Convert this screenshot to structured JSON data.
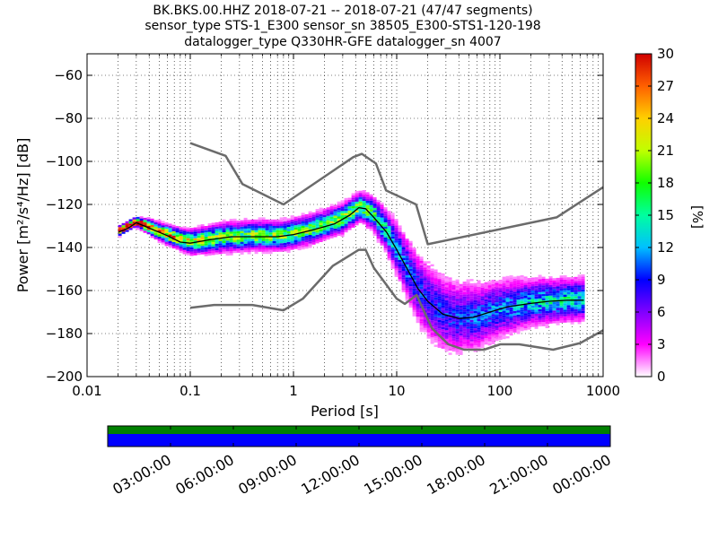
{
  "colors": {
    "noise_model": "#6b6b6b",
    "mode": "#000000",
    "availability_data": "#0000ff",
    "availability_gaps": "#ff0000",
    "availability_top": "#008000"
  },
  "chart_data": [
    {
      "type": "heatmap",
      "title_lines": [
        "BK.BKS.00.HHZ   2018-07-21 -- 2018-07-21  (47/47 segments)",
        "sensor_type STS-1_E300 sensor_sn 38505_E300-STS1-120-198",
        "datalogger_type Q330HR-GFE datalogger_sn 4007"
      ],
      "xlabel": "Period [s]",
      "ylabel": "Power [m²/s⁴/Hz] [dB]",
      "x_scale": "log",
      "xlim": [
        0.01,
        1000
      ],
      "ylim": [
        -200,
        -50
      ],
      "x_ticks": [
        0.01,
        0.1,
        1,
        10,
        100,
        1000
      ],
      "x_tick_labels": [
        "0.01",
        "0.1",
        "1",
        "10",
        "100",
        "1000"
      ],
      "y_ticks": [
        -200,
        -180,
        -160,
        -140,
        -120,
        -100,
        -80,
        -60
      ],
      "y_tick_labels": [
        "−200",
        "−180",
        "−160",
        "−140",
        "−120",
        "−100",
        "−80",
        "−60"
      ],
      "grid": true,
      "colorbar": {
        "label": "[%]",
        "range": [
          0,
          30
        ],
        "ticks": [
          0,
          3,
          6,
          9,
          12,
          15,
          18,
          21,
          24,
          27,
          30
        ],
        "tick_labels": [
          "0",
          "3",
          "6",
          "9",
          "12",
          "15",
          "18",
          "21",
          "24",
          "27",
          "30"
        ]
      },
      "series": [
        {
          "role": "high_noise_model",
          "x": [
            0.1,
            0.22,
            0.32,
            0.8,
            3.8,
            4.6,
            6.3,
            7.9,
            15.4,
            20,
            354.8,
            1000
          ],
          "y": [
            -91.5,
            -97.4,
            -110.5,
            -120,
            -98,
            -96.5,
            -101,
            -113.5,
            -120,
            -138.5,
            -126,
            -112
          ]
        },
        {
          "role": "low_noise_model",
          "x": [
            0.1,
            0.17,
            0.4,
            0.8,
            1.24,
            2.4,
            4.3,
            5,
            6,
            10,
            12,
            15.6,
            21.9,
            31.6,
            45,
            70,
            101,
            154,
            328,
            600,
            1000
          ],
          "y": [
            -168,
            -166.7,
            -166.7,
            -169.2,
            -163.7,
            -148.6,
            -141.1,
            -141.1,
            -149.4,
            -163.8,
            -166.2,
            -162.1,
            -177.5,
            -185,
            -187.5,
            -187.5,
            -185,
            -185,
            -187.5,
            -184.4,
            -178.5
          ]
        },
        {
          "role": "mode",
          "x": [
            0.02,
            0.025,
            0.03,
            0.04,
            0.06,
            0.08,
            0.1,
            0.15,
            0.25,
            0.4,
            0.7,
            1,
            1.5,
            2.5,
            3.5,
            4.3,
            5,
            6,
            8,
            10,
            13,
            16,
            20,
            28,
            40,
            55,
            80,
            120,
            200,
            300,
            450,
            650
          ],
          "y": [
            -133,
            -131,
            -128.5,
            -131,
            -134.5,
            -137.5,
            -138,
            -136.5,
            -135,
            -135,
            -135,
            -134,
            -132,
            -129,
            -125,
            -121.5,
            -122,
            -126,
            -133,
            -141,
            -151,
            -159,
            -165,
            -171,
            -173,
            -172.5,
            -170,
            -167.5,
            -166,
            -165,
            -164.5,
            -164.5
          ]
        }
      ],
      "psd_density": {
        "description": "probability density of PSD values (percent of segments per bin)",
        "x": [
          0.02,
          0.03,
          0.04,
          0.06,
          0.1,
          0.2,
          0.4,
          0.8,
          1.5,
          3,
          4.5,
          6,
          8,
          10,
          13,
          16,
          20,
          28,
          40,
          60,
          100,
          200,
          400,
          650
        ],
        "center_db": [
          -133,
          -128.5,
          -131,
          -134.5,
          -138,
          -136,
          -135,
          -135,
          -132,
          -127,
          -121.5,
          -125,
          -133,
          -141,
          -151,
          -159,
          -165,
          -171,
          -173,
          -172.5,
          -169,
          -166,
          -165,
          -164.5
        ],
        "spread_db": [
          2,
          2,
          3,
          4,
          5,
          6,
          6,
          6,
          6,
          6,
          6,
          7,
          9,
          11,
          13,
          15,
          16,
          16,
          15,
          14,
          12,
          10,
          9,
          9
        ]
      },
      "availability": {
        "x_tick_labels": [
          "03:00:00",
          "06:00:00",
          "09:00:00",
          "12:00:00",
          "15:00:00",
          "18:00:00",
          "21:00:00",
          "00:00:00"
        ]
      }
    }
  ]
}
